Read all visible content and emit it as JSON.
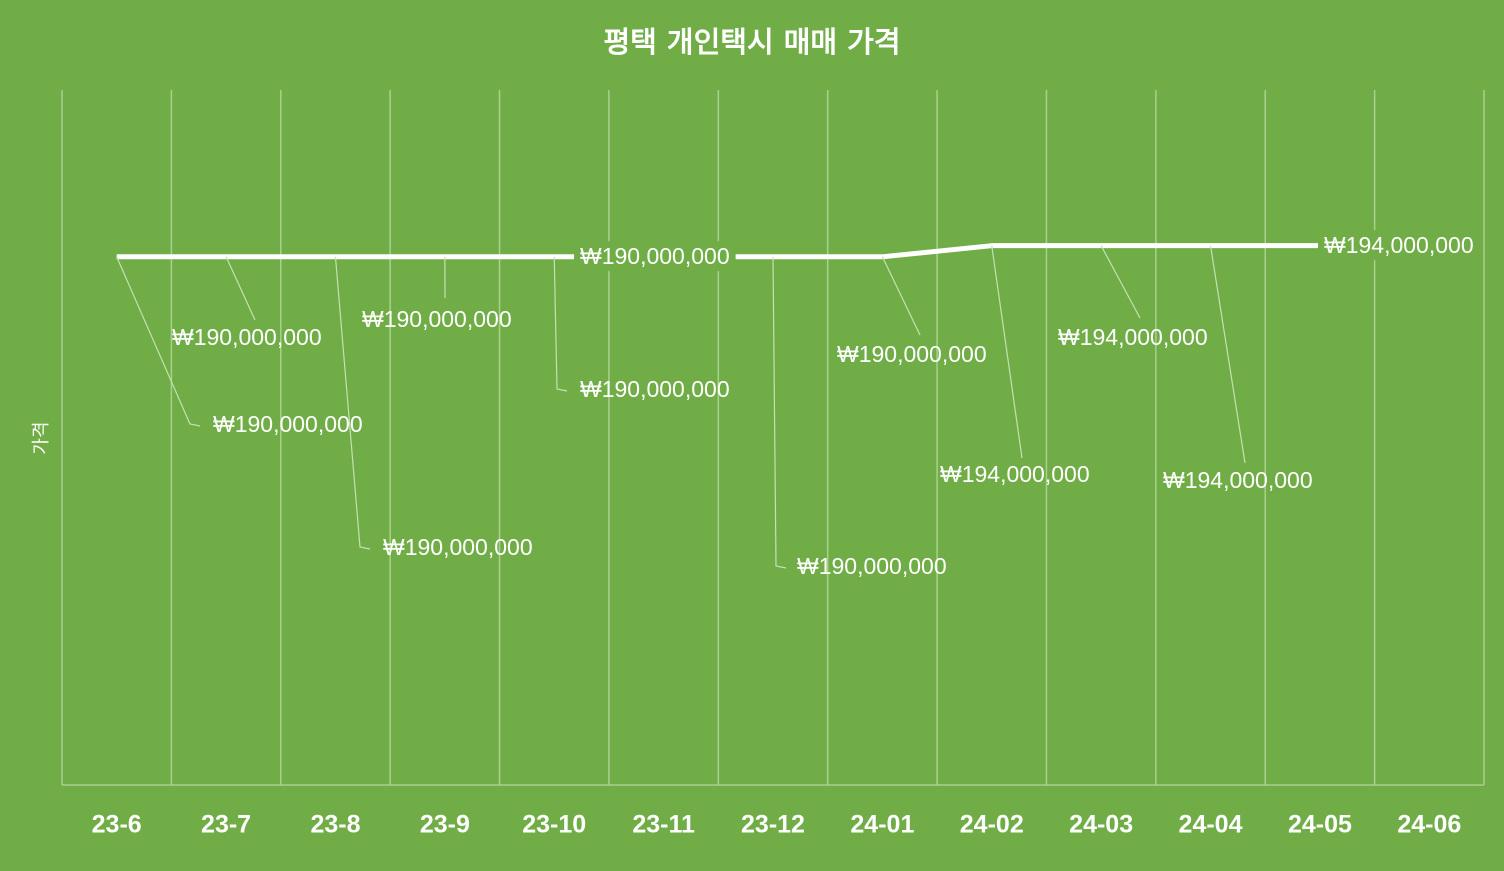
{
  "chart_data": {
    "type": "line",
    "title": "평택 개인택시 매매 가격",
    "y_label": "가격",
    "categories": [
      "23-6",
      "23-7",
      "23-8",
      "23-9",
      "23-10",
      "23-11",
      "23-12",
      "24-01",
      "24-02",
      "24-03",
      "24-04",
      "24-05",
      "24-06"
    ],
    "series": [
      {
        "name": "가격",
        "color": "#ffffff",
        "values": [
          190000000,
          190000000,
          190000000,
          190000000,
          190000000,
          190000000,
          190000000,
          190000000,
          194000000,
          194000000,
          194000000,
          194000000,
          null
        ],
        "value_labels": [
          "₩190,000,000",
          "₩190,000,000",
          "₩190,000,000",
          "₩190,000,000",
          "₩190,000,000",
          "₩190,000,000",
          "₩190,000,000",
          "₩190,000,000",
          "₩194,000,000",
          "₩194,000,000",
          "₩194,000,000",
          "₩194,000,000",
          null
        ]
      }
    ],
    "ylim": [
      0,
      250000000
    ],
    "grid": "vertical"
  }
}
